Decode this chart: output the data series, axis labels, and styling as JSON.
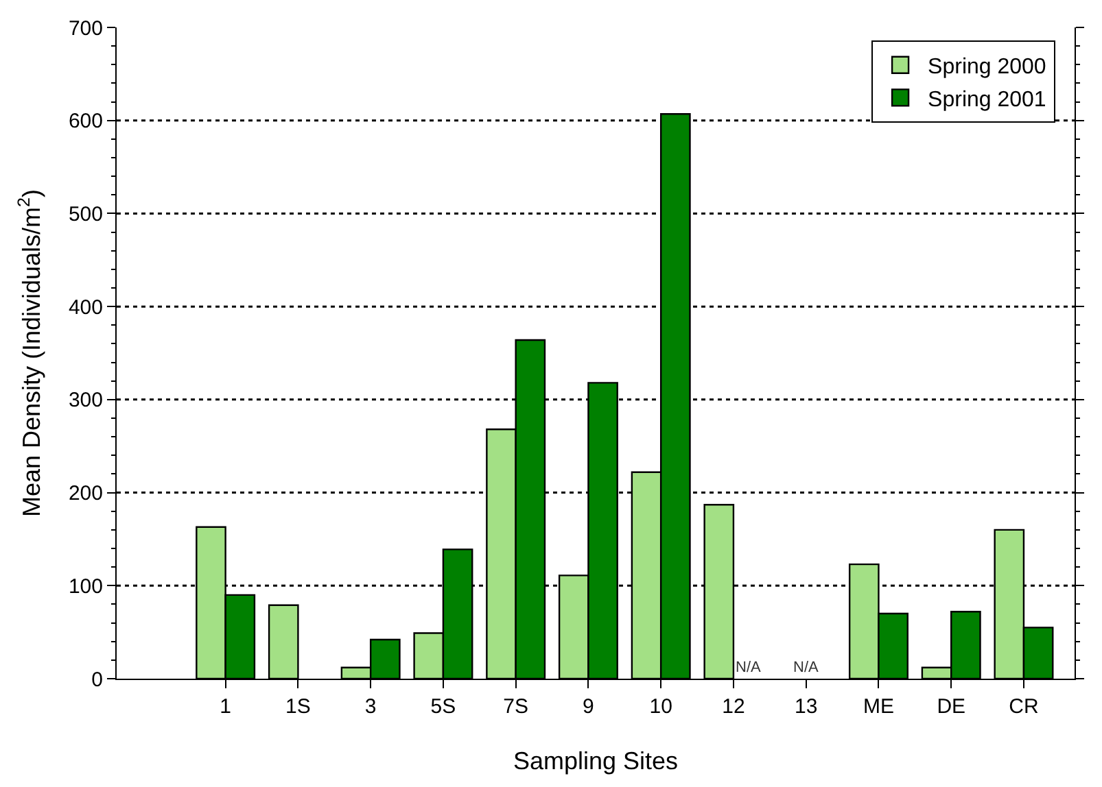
{
  "chart_data": {
    "type": "bar",
    "xlabel": "Sampling Sites",
    "ylabel": "Mean Density (Individuals/m$^{2}$)",
    "categories": [
      "1",
      "1S",
      "3",
      "5S",
      "7S",
      "9",
      "10",
      "12",
      "13",
      "ME",
      "DE",
      "CR"
    ],
    "series": [
      {
        "name": "Spring 2000",
        "color": "#a3e085",
        "values": [
          163,
          79,
          12,
          49,
          268,
          111,
          222,
          187,
          null,
          123,
          12,
          160
        ]
      },
      {
        "name": "Spring 2001",
        "color": "#008000",
        "values": [
          90,
          null,
          42,
          139,
          364,
          318,
          607,
          null,
          null,
          70,
          72,
          55
        ]
      }
    ],
    "ylim": [
      0,
      700
    ],
    "yticks": [
      0,
      100,
      200,
      300,
      400,
      500,
      600,
      700
    ],
    "grid": "y",
    "legend": "top right",
    "annotations": [
      {
        "text": "N/A",
        "x": "12",
        "y": 0
      },
      "N/A"
    ]
  }
}
